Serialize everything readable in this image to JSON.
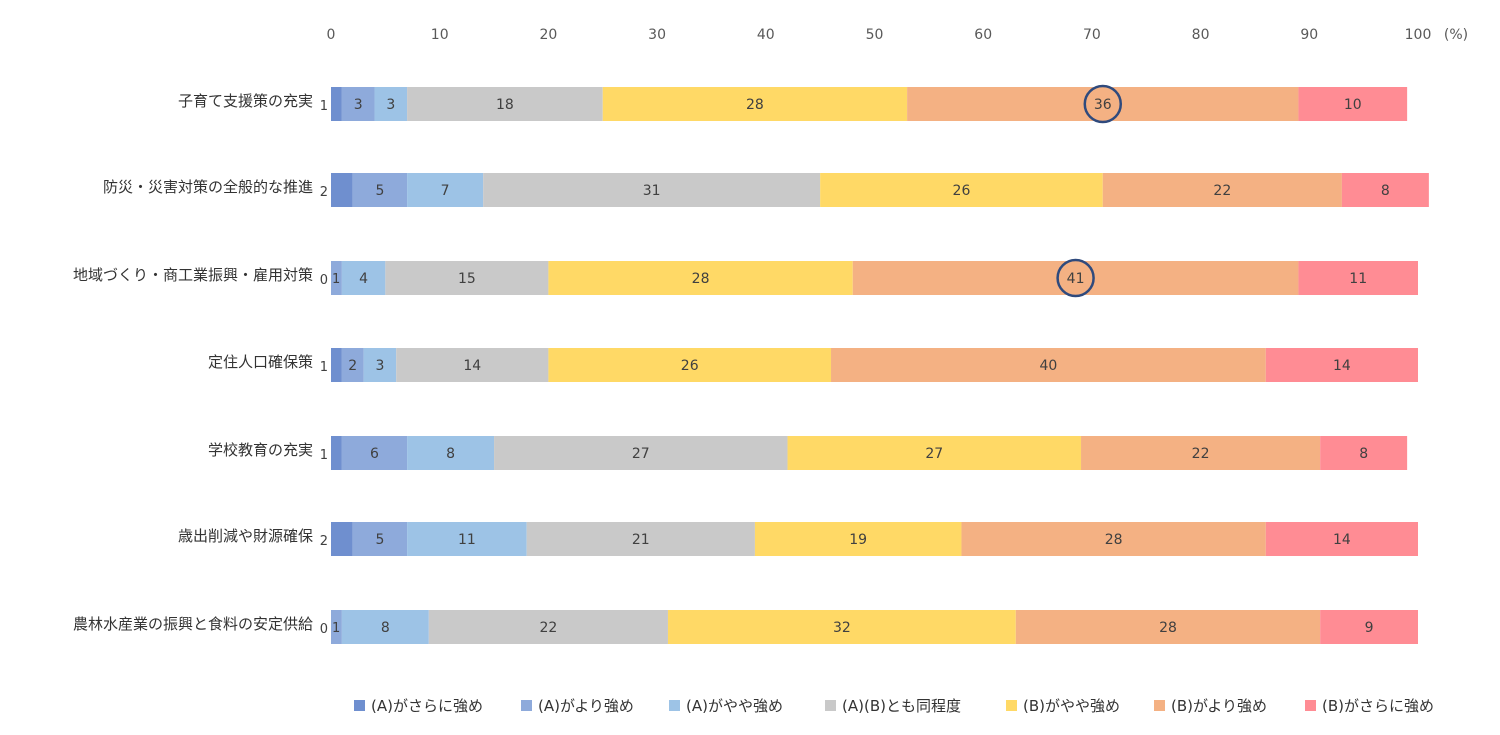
{
  "chart_data": {
    "type": "bar",
    "orientation": "horizontal-stacked",
    "axis_unit": "(%)",
    "x_ticks": [
      "0",
      "10",
      "20",
      "30",
      "40",
      "50",
      "60",
      "70",
      "80",
      "90",
      "100"
    ],
    "xlim": [
      0,
      100
    ],
    "legend_position": "bottom",
    "categories": [
      "子育て支援策の充実",
      "防災・災害対策の全般的な推進",
      "地域づくり・商工業振興・雇用対策",
      "定住人口確保策",
      "学校教育の充実",
      "歳出削減や財源確保",
      "農林水産業の振興と食料の安定供給"
    ],
    "series": [
      {
        "name": "(A)がさらに強め",
        "color": "#6F8FCF",
        "values": [
          1,
          2,
          0,
          1,
          1,
          2,
          0
        ]
      },
      {
        "name": "(A)がより強め",
        "color": "#8EAADB",
        "values": [
          3,
          5,
          1,
          2,
          6,
          5,
          1
        ]
      },
      {
        "name": "(A)がやや強め",
        "color": "#9DC3E6",
        "values": [
          3,
          7,
          4,
          3,
          8,
          11,
          8
        ]
      },
      {
        "name": "(A)(B)とも同程度",
        "color": "#C9C9C9",
        "values": [
          18,
          31,
          15,
          14,
          27,
          21,
          22
        ]
      },
      {
        "name": "(B)がやや強め",
        "color": "#FFD966",
        "values": [
          28,
          26,
          28,
          26,
          27,
          19,
          32
        ]
      },
      {
        "name": "(B)がより強め",
        "color": "#F4B183",
        "values": [
          36,
          22,
          41,
          40,
          22,
          28,
          28
        ]
      },
      {
        "name": "(B)がさらに強め",
        "color": "#FF8C94",
        "values": [
          10,
          8,
          11,
          14,
          8,
          14,
          9
        ]
      }
    ],
    "highlights": [
      {
        "category_index": 0,
        "series_index": 5,
        "value": 36
      },
      {
        "category_index": 2,
        "series_index": 5,
        "value": 41
      }
    ]
  }
}
